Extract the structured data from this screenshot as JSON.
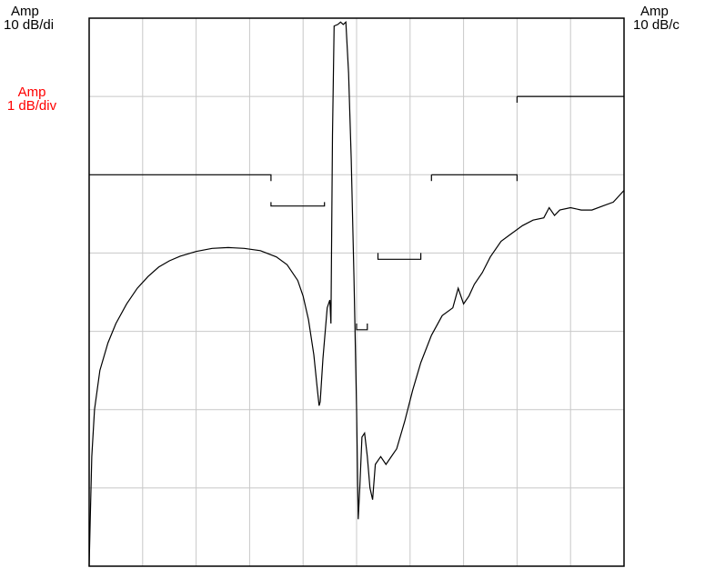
{
  "labels": {
    "left_top": {
      "title": "Amp",
      "scale": "10 dB/di"
    },
    "left_red": {
      "title": "Amp",
      "scale": "1 dB/div"
    },
    "right_top": {
      "title": "Amp",
      "scale": "10 dB/c"
    }
  },
  "colors": {
    "grid": "#c8c8c8",
    "trace": "#000000",
    "frame": "#000000",
    "accent": "#ff0000"
  },
  "chart_data": {
    "type": "line",
    "title": "",
    "xlabel": "",
    "ylabel": "",
    "grid": true,
    "x_divisions": 10,
    "y_divisions": 7,
    "xlim": [
      0,
      10
    ],
    "ylim": [
      0,
      7
    ],
    "series": [
      {
        "role": "trace",
        "points": [
          [
            0,
            0
          ],
          [
            0.02,
            0.6
          ],
          [
            0.05,
            1.4
          ],
          [
            0.1,
            2.0
          ],
          [
            0.2,
            2.5
          ],
          [
            0.35,
            2.85
          ],
          [
            0.5,
            3.1
          ],
          [
            0.7,
            3.35
          ],
          [
            0.9,
            3.55
          ],
          [
            1.1,
            3.7
          ],
          [
            1.3,
            3.82
          ],
          [
            1.5,
            3.9
          ],
          [
            1.7,
            3.96
          ],
          [
            2.0,
            4.02
          ],
          [
            2.3,
            4.06
          ],
          [
            2.6,
            4.07
          ],
          [
            2.9,
            4.06
          ],
          [
            3.2,
            4.03
          ],
          [
            3.5,
            3.95
          ],
          [
            3.7,
            3.85
          ],
          [
            3.9,
            3.65
          ],
          [
            4.0,
            3.45
          ],
          [
            4.1,
            3.15
          ],
          [
            4.2,
            2.7
          ],
          [
            4.26,
            2.3
          ],
          [
            4.3,
            2.05
          ],
          [
            4.32,
            2.1
          ],
          [
            4.37,
            2.65
          ],
          [
            4.45,
            3.3
          ],
          [
            4.5,
            3.4
          ],
          [
            4.52,
            3.1
          ],
          [
            4.55,
            5.5
          ],
          [
            4.58,
            6.9
          ],
          [
            4.65,
            6.92
          ],
          [
            4.7,
            6.95
          ],
          [
            4.75,
            6.92
          ],
          [
            4.8,
            6.95
          ],
          [
            4.85,
            6.3
          ],
          [
            4.9,
            5.2
          ],
          [
            4.95,
            3.7
          ],
          [
            5.0,
            2.0
          ],
          [
            5.03,
            0.6
          ],
          [
            5.06,
            1.0
          ],
          [
            5.1,
            1.65
          ],
          [
            5.15,
            1.7
          ],
          [
            5.2,
            1.4
          ],
          [
            5.25,
            1.0
          ],
          [
            5.3,
            0.85
          ],
          [
            5.35,
            1.3
          ],
          [
            5.45,
            1.4
          ],
          [
            5.55,
            1.3
          ],
          [
            5.65,
            1.4
          ],
          [
            5.75,
            1.5
          ],
          [
            5.9,
            1.85
          ],
          [
            6.05,
            2.25
          ],
          [
            6.2,
            2.6
          ],
          [
            6.4,
            2.95
          ],
          [
            6.6,
            3.2
          ],
          [
            6.8,
            3.3
          ],
          [
            6.9,
            3.55
          ],
          [
            7.0,
            3.35
          ],
          [
            7.1,
            3.45
          ],
          [
            7.2,
            3.6
          ],
          [
            7.35,
            3.75
          ],
          [
            7.5,
            3.95
          ],
          [
            7.7,
            4.15
          ],
          [
            7.9,
            4.25
          ],
          [
            8.1,
            4.35
          ],
          [
            8.3,
            4.42
          ],
          [
            8.5,
            4.45
          ],
          [
            8.6,
            4.58
          ],
          [
            8.7,
            4.48
          ],
          [
            8.8,
            4.55
          ],
          [
            9.0,
            4.58
          ],
          [
            9.2,
            4.55
          ],
          [
            9.4,
            4.55
          ],
          [
            9.6,
            4.6
          ],
          [
            9.8,
            4.65
          ],
          [
            10.0,
            4.8
          ]
        ]
      },
      {
        "role": "limit-mask",
        "segments": [
          [
            [
              0,
              5.0
            ],
            [
              3.4,
              5.0
            ],
            [
              3.4,
              4.92
            ]
          ],
          [
            [
              3.4,
              4.65
            ],
            [
              3.4,
              4.6
            ],
            [
              4.4,
              4.6
            ],
            [
              4.4,
              4.65
            ]
          ],
          [
            [
              5.0,
              3.1
            ],
            [
              5.0,
              3.02
            ],
            [
              5.2,
              3.02
            ],
            [
              5.2,
              3.1
            ]
          ],
          [
            [
              5.4,
              4.0
            ],
            [
              5.4,
              3.92
            ],
            [
              6.2,
              3.92
            ],
            [
              6.2,
              4.0
            ]
          ],
          [
            [
              6.4,
              5.0
            ],
            [
              6.4,
              4.92
            ]
          ],
          [
            [
              6.4,
              5.0
            ],
            [
              8.0,
              5.0
            ],
            [
              8.0,
              4.92
            ]
          ],
          [
            [
              8.0,
              6.0
            ],
            [
              8.0,
              5.92
            ]
          ],
          [
            [
              8.0,
              6.0
            ],
            [
              10,
              6.0
            ]
          ]
        ]
      }
    ]
  }
}
